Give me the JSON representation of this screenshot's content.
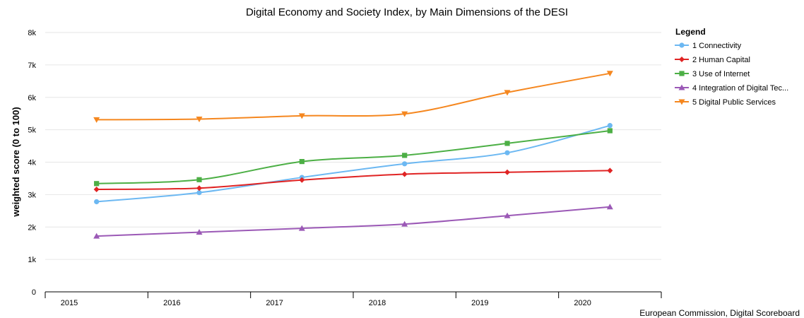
{
  "chart_data": {
    "type": "line",
    "title": "Digital Economy and Society Index, by Main Dimensions of the DESI",
    "xlabel": "",
    "ylabel": "weighted score (0 to 100)",
    "categories": [
      "2015",
      "2016",
      "2017",
      "2018",
      "2019",
      "2020"
    ],
    "ylim": [
      0,
      8000
    ],
    "yticks": [
      0,
      1000,
      2000,
      3000,
      4000,
      5000,
      6000,
      7000,
      8000
    ],
    "ytick_labels": [
      "0",
      "1k",
      "2k",
      "3k",
      "4k",
      "5k",
      "6k",
      "7k",
      "8k"
    ],
    "grid": true,
    "legend_title": "Legend",
    "legend_position": "right",
    "credit": "European Commission, Digital Scoreboard",
    "series": [
      {
        "name": "1 Connectivity",
        "color": "#6cb8f2",
        "marker": "circle",
        "values": [
          2780,
          3060,
          3530,
          3950,
          4290,
          5130
        ]
      },
      {
        "name": "2 Human Capital",
        "color": "#e02424",
        "marker": "diamond",
        "values": [
          3160,
          3200,
          3450,
          3630,
          3690,
          3740
        ]
      },
      {
        "name": "3 Use of Internet",
        "color": "#4caf45",
        "marker": "square",
        "values": [
          3340,
          3460,
          4020,
          4210,
          4580,
          4970
        ]
      },
      {
        "name": "4 Integration of Digital Tec...",
        "color": "#9b59b6",
        "marker": "triangle-up",
        "values": [
          1720,
          1840,
          1960,
          2090,
          2350,
          2620
        ]
      },
      {
        "name": "5 Digital Public Services",
        "color": "#f5871f",
        "marker": "triangle-down",
        "values": [
          5310,
          5330,
          5430,
          5490,
          6150,
          6740
        ]
      }
    ]
  }
}
